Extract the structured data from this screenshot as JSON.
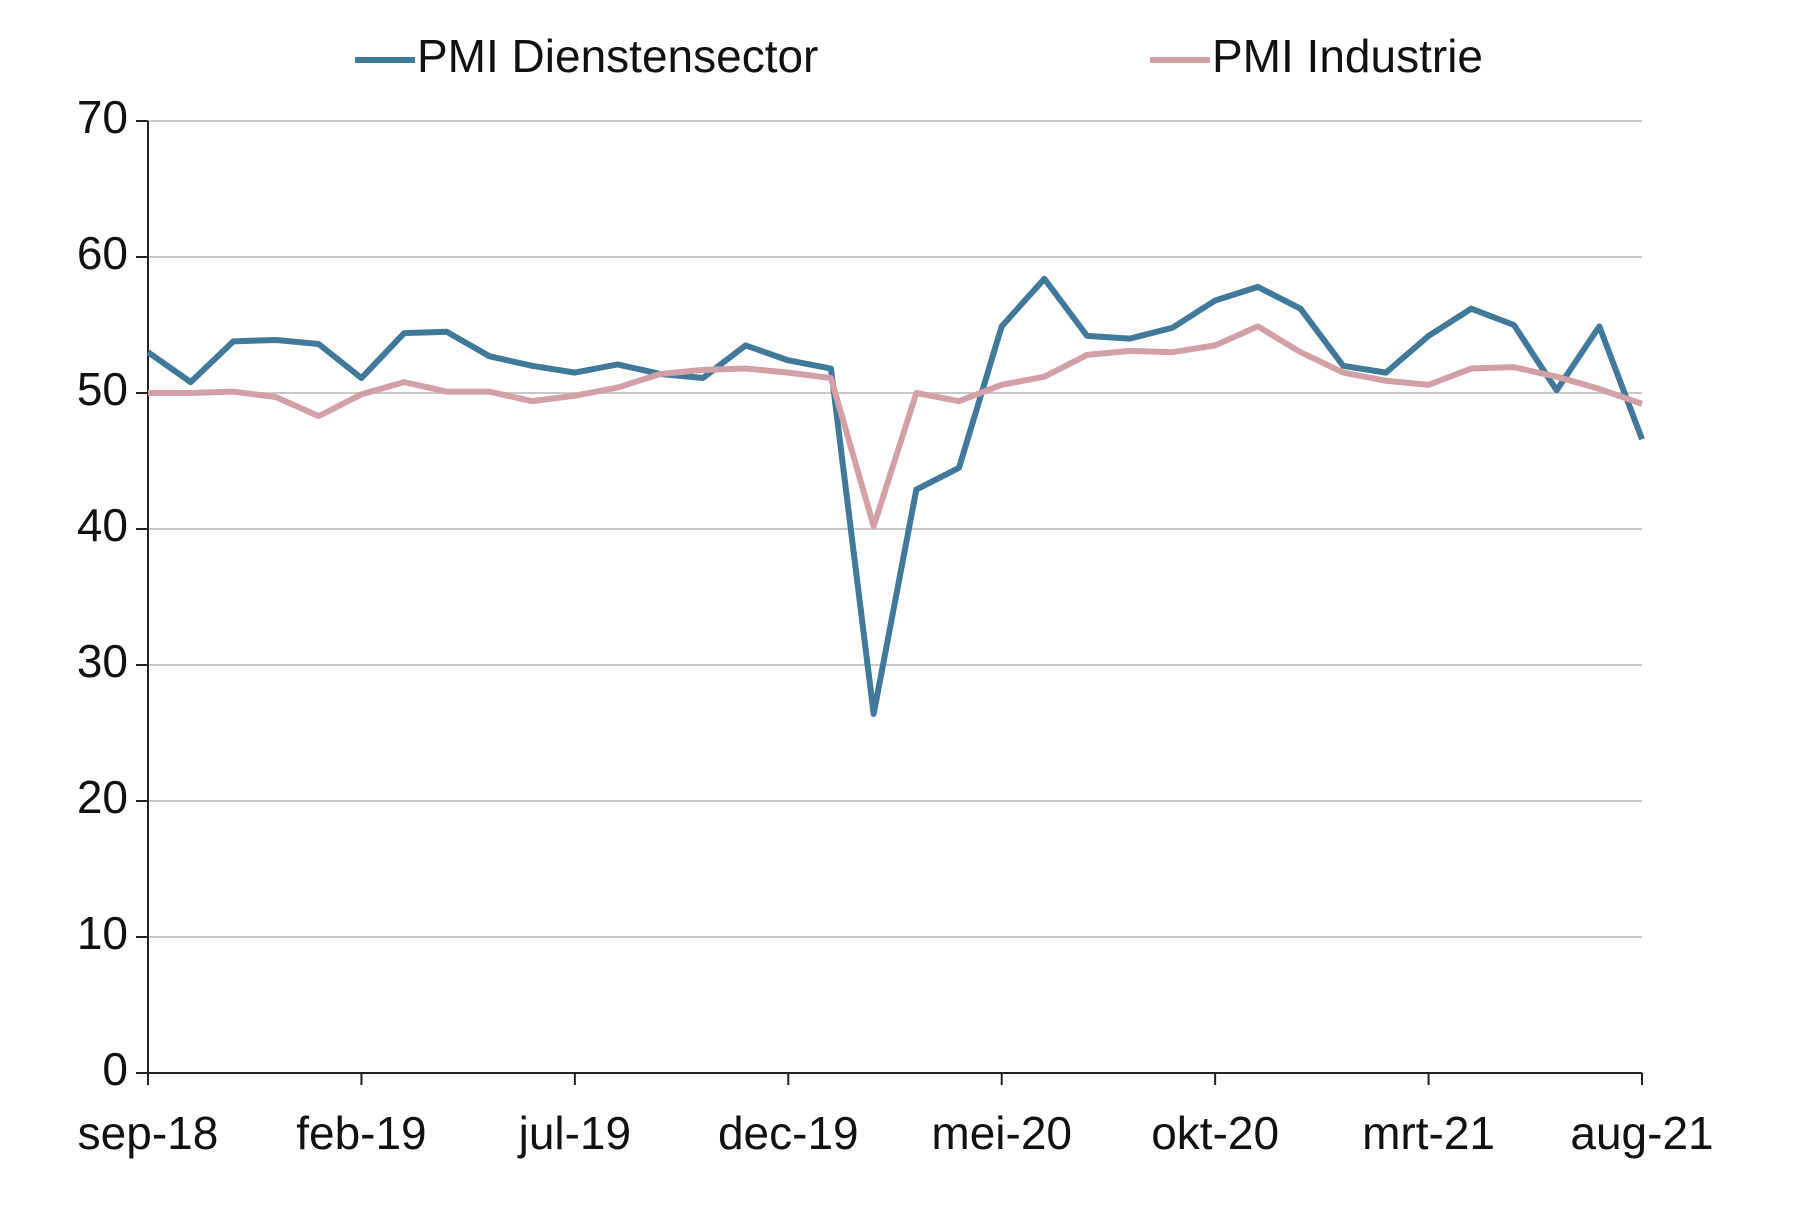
{
  "chart_data": {
    "type": "line",
    "categories": [
      "sep-18",
      null,
      null,
      null,
      null,
      "feb-19",
      null,
      null,
      null,
      null,
      "jul-19",
      null,
      null,
      null,
      null,
      "dec-19",
      null,
      null,
      null,
      null,
      "mei-20",
      null,
      null,
      null,
      null,
      "okt-20",
      null,
      null,
      null,
      null,
      "mrt-21",
      null,
      null,
      null,
      null,
      "aug-21"
    ],
    "series": [
      {
        "name": "PMI Dienstensector",
        "color": "#41799b",
        "values": [
          53.0,
          50.8,
          53.8,
          53.9,
          53.6,
          51.1,
          54.4,
          54.5,
          52.7,
          52.0,
          51.5,
          52.1,
          51.4,
          51.1,
          53.5,
          52.4,
          51.8,
          26.4,
          42.9,
          44.5,
          54.9,
          58.4,
          54.2,
          54.0,
          54.8,
          56.8,
          57.8,
          56.2,
          52.0,
          51.5,
          54.2,
          56.2,
          55.0,
          50.2,
          54.9,
          46.6
        ]
      },
      {
        "name": "PMI Industrie",
        "color": "#d3a0a6",
        "values": [
          50.0,
          50.0,
          50.1,
          49.7,
          48.3,
          49.9,
          50.8,
          50.1,
          50.1,
          49.4,
          49.8,
          50.4,
          51.4,
          51.7,
          51.8,
          51.5,
          51.1,
          40.2,
          50.0,
          49.4,
          50.6,
          51.2,
          52.8,
          53.1,
          53.0,
          53.5,
          54.9,
          53.0,
          51.5,
          50.9,
          50.6,
          51.8,
          51.9,
          51.2,
          50.3,
          49.2
        ]
      }
    ],
    "ylim": [
      0,
      70
    ],
    "yticks": [
      0,
      10,
      20,
      30,
      40,
      50,
      60,
      70
    ],
    "grid": true
  }
}
